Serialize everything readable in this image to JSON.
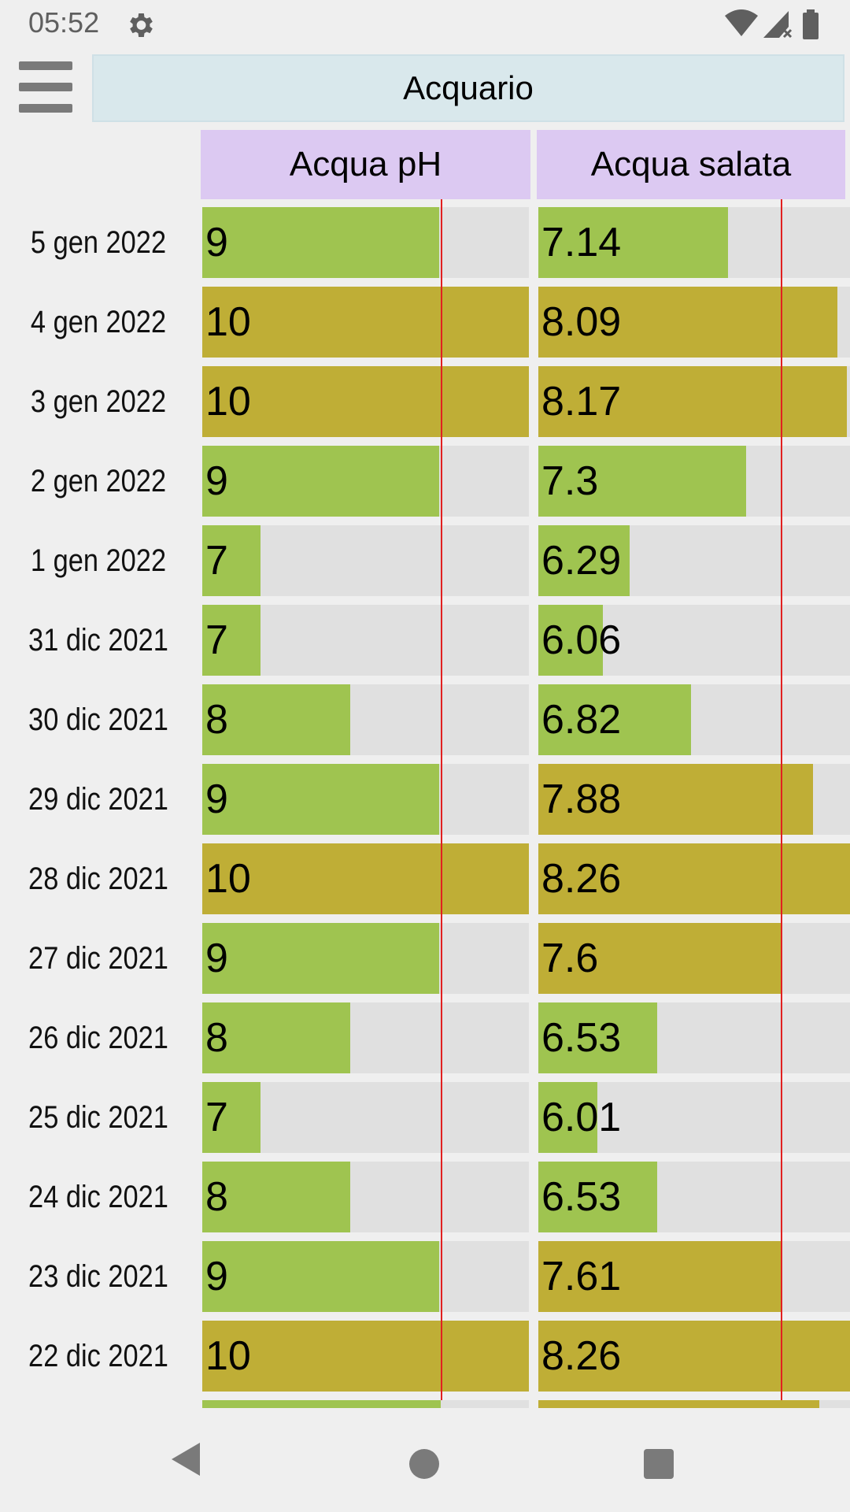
{
  "status_bar": {
    "time": "05:52"
  },
  "header": {
    "title": "Acquario"
  },
  "columns": {
    "ph_label": "Acqua pH",
    "salt_label": "Acqua salata"
  },
  "colors": {
    "normal": "#9fc450",
    "over_threshold": "#bfae36",
    "empty": "#e0e0e0",
    "threshold_line": "#e12020",
    "header_bg": "#dcc9f2",
    "title_bg": "#d9e8ec"
  },
  "rows": [
    {
      "date": "5 gen 2022",
      "ph": "9",
      "salt": "7.14"
    },
    {
      "date": "4 gen 2022",
      "ph": "10",
      "salt": "8.09"
    },
    {
      "date": "3 gen 2022",
      "ph": "10",
      "salt": "8.17"
    },
    {
      "date": "2 gen 2022",
      "ph": "9",
      "salt": "7.3"
    },
    {
      "date": "1 gen 2022",
      "ph": "7",
      "salt": "6.29"
    },
    {
      "date": "31 dic 2021",
      "ph": "7",
      "salt": "6.06"
    },
    {
      "date": "30 dic 2021",
      "ph": "8",
      "salt": "6.82"
    },
    {
      "date": "29 dic 2021",
      "ph": "9",
      "salt": "7.88"
    },
    {
      "date": "28 dic 2021",
      "ph": "10",
      "salt": "8.26"
    },
    {
      "date": "27 dic 2021",
      "ph": "9",
      "salt": "7.6"
    },
    {
      "date": "26 dic 2021",
      "ph": "8",
      "salt": "6.53"
    },
    {
      "date": "25 dic 2021",
      "ph": "7",
      "salt": "6.01"
    },
    {
      "date": "24 dic 2021",
      "ph": "8",
      "salt": "6.53"
    },
    {
      "date": "23 dic 2021",
      "ph": "9",
      "salt": "7.61"
    },
    {
      "date": "22 dic 2021",
      "ph": "10",
      "salt": "8.26"
    }
  ]
}
